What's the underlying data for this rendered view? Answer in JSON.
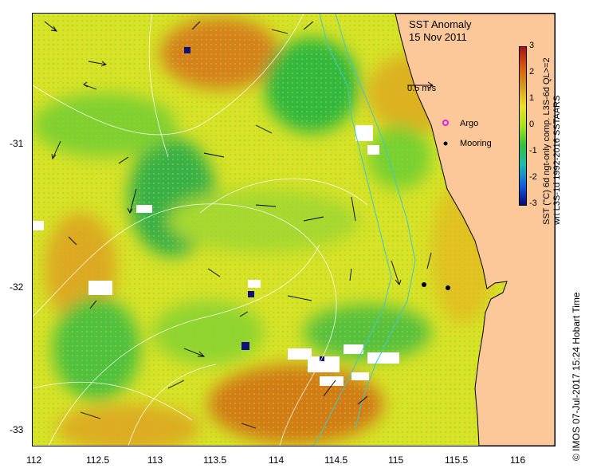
{
  "map": {
    "title_line1": "SST Anomaly",
    "title_line2": "15 Nov 2011",
    "scale_label": "0.5 m/s",
    "legend": {
      "argo": "Argo",
      "mooring": "Mooring"
    },
    "x_ticks": [
      "112",
      "112.5",
      "113",
      "113.5",
      "114",
      "114.5",
      "115",
      "115.5",
      "116"
    ],
    "y_ticks": [
      "-31",
      "-32",
      "-33"
    ],
    "colorbar": {
      "ticks": [
        "3",
        "2",
        "1",
        "0",
        "-1",
        "-2",
        "-3"
      ],
      "caption_line1": "SST (°C) 6d ngt-only comp. L3S-6d QL>=2",
      "caption_line2": "wrt L3S-1d 1992-2016 SSTAARS",
      "colors": [
        "#a8101a",
        "#d45a10",
        "#d89a20",
        "#e8e030",
        "#a8e020",
        "#30c040",
        "#20b8b0",
        "#1060e0",
        "#08087a"
      ]
    },
    "credit": "© IMOS 07-Jul-2017 15:24 Hobart Time",
    "colors": {
      "land": "#fcc89a",
      "coast_contour": "#40c8c8"
    },
    "moorings": [
      {
        "lon": 115.23,
        "lat": -31.98
      },
      {
        "lon": 115.42,
        "lat": -32.0
      }
    ]
  }
}
